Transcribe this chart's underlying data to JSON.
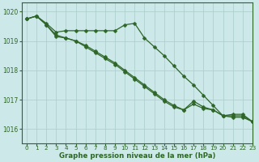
{
  "xlabel": "Graphe pression niveau de la mer (hPa)",
  "xlim": [
    -0.5,
    23
  ],
  "ylim": [
    1015.5,
    1020.3
  ],
  "yticks": [
    1016,
    1017,
    1018,
    1019,
    1020
  ],
  "xticks": [
    0,
    1,
    2,
    3,
    4,
    5,
    6,
    7,
    8,
    9,
    10,
    11,
    12,
    13,
    14,
    15,
    16,
    17,
    18,
    19,
    20,
    21,
    22,
    23
  ],
  "bg_color": "#cce8e8",
  "grid_color": "#aacccc",
  "line_color": "#2d6627",
  "series1": [
    1019.75,
    1019.85,
    1019.6,
    1019.3,
    1019.35,
    1019.35,
    1019.35,
    1019.35,
    1019.35,
    1019.35,
    1019.55,
    1019.6,
    1019.1,
    1018.8,
    1018.5,
    1018.15,
    1017.8,
    1017.5,
    1017.15,
    1016.8,
    1016.45,
    1016.4,
    1016.4,
    1016.25
  ],
  "series2": [
    1019.75,
    1019.85,
    1019.55,
    1019.2,
    1019.1,
    1019.0,
    1018.8,
    1018.6,
    1018.4,
    1018.2,
    1017.95,
    1017.7,
    1017.45,
    1017.2,
    1016.95,
    1016.75,
    1016.65,
    1016.95,
    1016.75,
    1016.65,
    1016.45,
    1016.45,
    1016.45,
    1016.25
  ],
  "series3": [
    1019.75,
    1019.85,
    1019.55,
    1019.15,
    1019.1,
    1019.0,
    1018.85,
    1018.65,
    1018.45,
    1018.25,
    1018.0,
    1017.75,
    1017.5,
    1017.25,
    1017.0,
    1016.8,
    1016.65,
    1016.85,
    1016.7,
    1016.65,
    1016.45,
    1016.5,
    1016.5,
    1016.25
  ],
  "markersize": 2.5,
  "linewidth": 0.9
}
